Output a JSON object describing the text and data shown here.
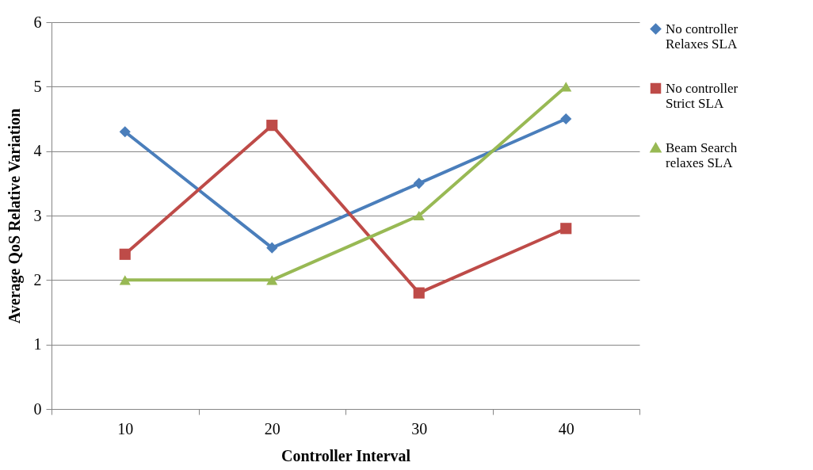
{
  "chart_data": {
    "type": "line",
    "xlabel": "Controller Interval",
    "ylabel": "Average QoS Relative Variation",
    "categories": [
      "10",
      "20",
      "30",
      "40"
    ],
    "series": [
      {
        "name": "No controller Relaxes SLA",
        "color": "#4a7ebb",
        "marker": "diamond",
        "values": [
          4.3,
          2.5,
          3.5,
          4.5
        ]
      },
      {
        "name": "No controller Strict SLA",
        "color": "#be4b48",
        "marker": "square",
        "values": [
          2.4,
          4.4,
          1.8,
          2.8
        ]
      },
      {
        "name": "Beam Search relaxes SLA",
        "color": "#98b954",
        "marker": "triangle",
        "values": [
          2,
          2,
          3,
          5
        ]
      }
    ],
    "ylim": [
      0,
      6
    ],
    "yticks": [
      0,
      1,
      2,
      3,
      4,
      5,
      6
    ],
    "grid": "y",
    "legend": "right"
  }
}
